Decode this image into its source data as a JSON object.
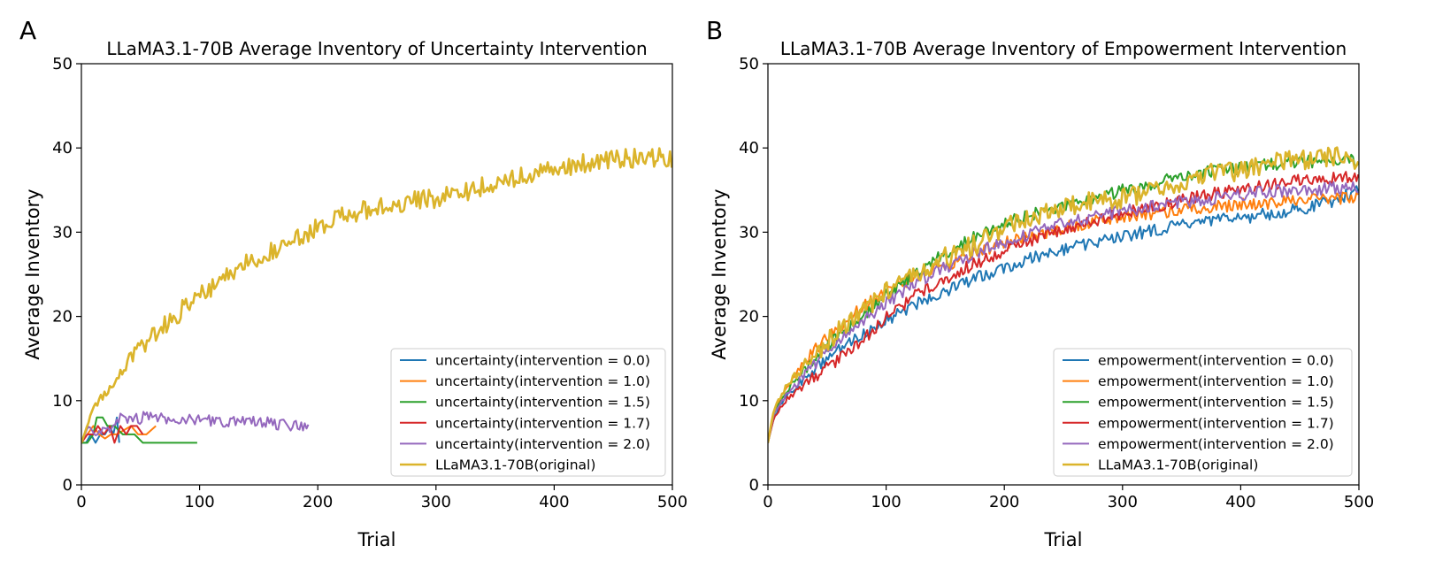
{
  "chart_data": [
    {
      "panel_letter": "A",
      "type": "line",
      "title": "LLaMA3.1-70B Average Inventory of Uncertainty Intervention",
      "xlabel": "Trial",
      "ylabel": "Average Inventory",
      "xlim": [
        0,
        500
      ],
      "ylim": [
        0,
        50
      ],
      "xticks": [
        0,
        100,
        200,
        300,
        400,
        500
      ],
      "yticks": [
        0,
        10,
        20,
        30,
        40,
        50
      ],
      "grid": false,
      "legend_position": "lower-right",
      "series": [
        {
          "name": "uncertainty(intervention = 0.0)",
          "color": "#1f77b4",
          "points": [
            [
              0,
              5
            ],
            [
              4,
              5
            ],
            [
              8,
              6
            ],
            [
              12,
              5
            ],
            [
              16,
              6
            ],
            [
              20,
              6
            ],
            [
              24,
              7
            ],
            [
              27,
              6
            ],
            [
              30,
              8
            ],
            [
              32,
              5
            ]
          ]
        },
        {
          "name": "uncertainty(intervention = 1.0)",
          "color": "#ff7f0e",
          "points": [
            [
              0,
              5
            ],
            [
              5,
              6
            ],
            [
              10,
              7
            ],
            [
              15,
              6
            ],
            [
              20,
              5.5
            ],
            [
              25,
              6
            ],
            [
              30,
              6
            ],
            [
              36,
              6.5
            ],
            [
              42,
              7
            ],
            [
              48,
              6
            ],
            [
              55,
              6
            ],
            [
              63,
              7
            ]
          ]
        },
        {
          "name": "uncertainty(intervention = 1.5)",
          "color": "#2ca02c",
          "points": [
            [
              0,
              5
            ],
            [
              5,
              5
            ],
            [
              10,
              6
            ],
            [
              13,
              8
            ],
            [
              18,
              8
            ],
            [
              22,
              7
            ],
            [
              28,
              7
            ],
            [
              35,
              6
            ],
            [
              45,
              6
            ],
            [
              52,
              5
            ],
            [
              60,
              5
            ],
            [
              80,
              5
            ],
            [
              98,
              5
            ]
          ]
        },
        {
          "name": "uncertainty(intervention = 1.7)",
          "color": "#d62728",
          "points": [
            [
              0,
              5
            ],
            [
              5,
              6
            ],
            [
              10,
              6
            ],
            [
              14,
              7
            ],
            [
              19,
              6
            ],
            [
              24,
              7
            ],
            [
              28,
              5
            ],
            [
              33,
              7
            ],
            [
              38,
              6
            ],
            [
              42,
              7
            ],
            [
              47,
              7
            ],
            [
              52,
              6
            ]
          ]
        },
        {
          "name": "uncertainty(intervention = 2.0)",
          "color": "#9467bd",
          "points": [
            [
              0,
              5
            ],
            [
              6,
              7
            ],
            [
              12,
              6
            ],
            [
              18,
              6.5
            ],
            [
              26,
              6.5
            ],
            [
              33,
              8
            ],
            [
              60,
              7.9
            ],
            [
              100,
              7.7
            ],
            [
              150,
              7.4
            ],
            [
              193,
              7
            ]
          ]
        },
        {
          "name": "LLaMA3.1-70B(original)",
          "color": "#dbb42b",
          "main": true,
          "points": [
            [
              0,
              5
            ],
            [
              10,
              9
            ],
            [
              25,
              12
            ],
            [
              50,
              16
            ],
            [
              75,
              19.5
            ],
            [
              100,
              22.5
            ],
            [
              125,
              25
            ],
            [
              150,
              27
            ],
            [
              175,
              28.5
            ],
            [
              200,
              30.5
            ],
            [
              225,
              32
            ],
            [
              250,
              33
            ],
            [
              275,
              33.7
            ],
            [
              300,
              34
            ],
            [
              325,
              34.8
            ],
            [
              350,
              35.8
            ],
            [
              375,
              37
            ],
            [
              400,
              37.3
            ],
            [
              425,
              38.2
            ],
            [
              450,
              38.6
            ],
            [
              475,
              39
            ],
            [
              500,
              38.6
            ]
          ]
        }
      ]
    },
    {
      "panel_letter": "B",
      "type": "line",
      "title": "LLaMA3.1-70B Average Inventory of Empowerment Intervention",
      "xlabel": "Trial",
      "ylabel": "Average Inventory",
      "xlim": [
        0,
        500
      ],
      "ylim": [
        0,
        50
      ],
      "xticks": [
        0,
        100,
        200,
        300,
        400,
        500
      ],
      "yticks": [
        0,
        10,
        20,
        30,
        40,
        50
      ],
      "grid": false,
      "legend_position": "lower-right",
      "series": [
        {
          "name": "empowerment(intervention = 0.0)",
          "color": "#1f77b4",
          "points": [
            [
              0,
              5
            ],
            [
              5,
              8
            ],
            [
              15,
              10.5
            ],
            [
              30,
              12.5
            ],
            [
              50,
              15
            ],
            [
              75,
              17.5
            ],
            [
              100,
              19.5
            ],
            [
              125,
              21.5
            ],
            [
              150,
              23
            ],
            [
              175,
              24.5
            ],
            [
              200,
              25.8
            ],
            [
              225,
              27
            ],
            [
              250,
              28
            ],
            [
              275,
              28.7
            ],
            [
              300,
              29.5
            ],
            [
              325,
              30.2
            ],
            [
              350,
              30.8
            ],
            [
              375,
              31.3
            ],
            [
              400,
              31.7
            ],
            [
              425,
              32.2
            ],
            [
              450,
              32.8
            ],
            [
              475,
              33.5
            ],
            [
              500,
              35
            ]
          ]
        },
        {
          "name": "empowerment(intervention = 1.0)",
          "color": "#ff7f0e",
          "points": [
            [
              0,
              5
            ],
            [
              5,
              8.5
            ],
            [
              15,
              11.5
            ],
            [
              30,
              14.5
            ],
            [
              50,
              17.5
            ],
            [
              75,
              20.5
            ],
            [
              100,
              23
            ],
            [
              125,
              24.8
            ],
            [
              150,
              26
            ],
            [
              175,
              27.5
            ],
            [
              200,
              28.7
            ],
            [
              225,
              29.7
            ],
            [
              250,
              30.5
            ],
            [
              275,
              31.2
            ],
            [
              300,
              31.8
            ],
            [
              325,
              32.2
            ],
            [
              350,
              32.6
            ],
            [
              375,
              33
            ],
            [
              400,
              33.3
            ],
            [
              425,
              33.5
            ],
            [
              450,
              33.8
            ],
            [
              475,
              34
            ],
            [
              500,
              34
            ]
          ]
        },
        {
          "name": "empowerment(intervention = 1.5)",
          "color": "#2ca02c",
          "points": [
            [
              0,
              5
            ],
            [
              5,
              8.5
            ],
            [
              15,
              11
            ],
            [
              30,
              13.5
            ],
            [
              50,
              16.5
            ],
            [
              75,
              19.5
            ],
            [
              100,
              22.5
            ],
            [
              125,
              25
            ],
            [
              150,
              27.5
            ],
            [
              175,
              29.5
            ],
            [
              200,
              31
            ],
            [
              225,
              32.2
            ],
            [
              250,
              33.2
            ],
            [
              275,
              34
            ],
            [
              300,
              35
            ],
            [
              325,
              35.8
            ],
            [
              350,
              36.5
            ],
            [
              375,
              37.2
            ],
            [
              400,
              37.7
            ],
            [
              425,
              38
            ],
            [
              450,
              38.3
            ],
            [
              475,
              38.5
            ],
            [
              500,
              38.6
            ]
          ]
        },
        {
          "name": "empowerment(intervention = 1.7)",
          "color": "#d62728",
          "points": [
            [
              0,
              5
            ],
            [
              5,
              8
            ],
            [
              15,
              10
            ],
            [
              30,
              11.8
            ],
            [
              50,
              14
            ],
            [
              75,
              16.5
            ],
            [
              100,
              19.8
            ],
            [
              125,
              22.5
            ],
            [
              150,
              24.5
            ],
            [
              175,
              26.3
            ],
            [
              200,
              27.8
            ],
            [
              225,
              29.2
            ],
            [
              250,
              30.3
            ],
            [
              275,
              31.3
            ],
            [
              300,
              32.2
            ],
            [
              325,
              33
            ],
            [
              350,
              33.8
            ],
            [
              375,
              34.5
            ],
            [
              400,
              35.2
            ],
            [
              425,
              35.7
            ],
            [
              450,
              36.2
            ],
            [
              475,
              36.5
            ],
            [
              500,
              36.7
            ]
          ]
        },
        {
          "name": "empowerment(intervention = 2.0)",
          "color": "#9467bd",
          "points": [
            [
              0,
              5
            ],
            [
              5,
              8.5
            ],
            [
              15,
              10.5
            ],
            [
              30,
              13
            ],
            [
              50,
              16
            ],
            [
              75,
              19
            ],
            [
              100,
              21.5
            ],
            [
              125,
              24
            ],
            [
              150,
              25.8
            ],
            [
              175,
              27.5
            ],
            [
              200,
              28.8
            ],
            [
              225,
              30
            ],
            [
              250,
              31
            ],
            [
              275,
              31.8
            ],
            [
              300,
              32.5
            ],
            [
              325,
              33
            ],
            [
              350,
              33.5
            ],
            [
              375,
              34
            ],
            [
              400,
              34.5
            ],
            [
              425,
              34.8
            ],
            [
              450,
              35
            ],
            [
              475,
              35.2
            ],
            [
              500,
              35.4
            ]
          ]
        },
        {
          "name": "LLaMA3.1-70B(original)",
          "color": "#dbb42b",
          "main": true,
          "points": [
            [
              0,
              5
            ],
            [
              5,
              9
            ],
            [
              15,
              11.5
            ],
            [
              30,
              14
            ],
            [
              50,
              17
            ],
            [
              75,
              20
            ],
            [
              100,
              22.8
            ],
            [
              125,
              25
            ],
            [
              150,
              27
            ],
            [
              175,
              28.5
            ],
            [
              200,
              30.5
            ],
            [
              225,
              32
            ],
            [
              250,
              33
            ],
            [
              275,
              33.7
            ],
            [
              300,
              34
            ],
            [
              325,
              34.8
            ],
            [
              350,
              35.8
            ],
            [
              375,
              37
            ],
            [
              400,
              37.3
            ],
            [
              425,
              38.2
            ],
            [
              450,
              38.6
            ],
            [
              475,
              39
            ],
            [
              500,
              38.6
            ]
          ]
        }
      ]
    }
  ]
}
